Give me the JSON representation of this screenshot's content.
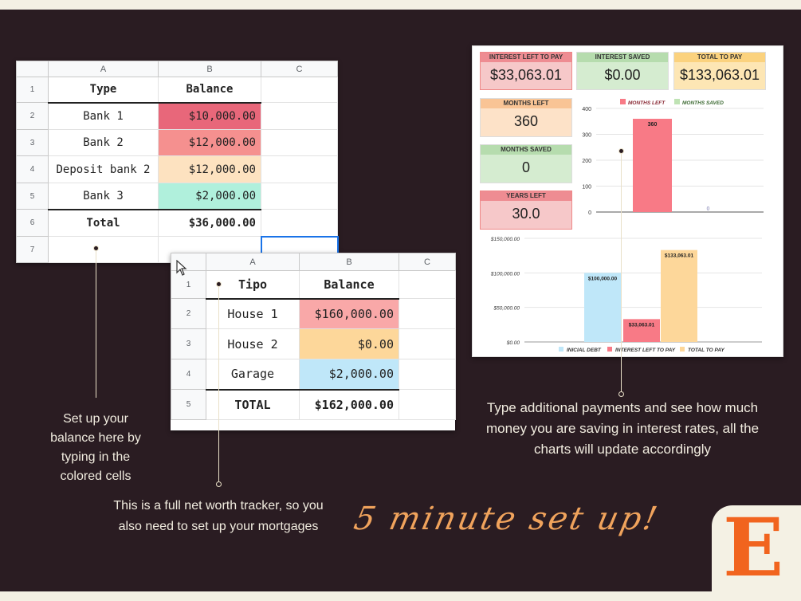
{
  "sheet1": {
    "cols": [
      "A",
      "B",
      "C"
    ],
    "rows": [
      {
        "n": "1",
        "type": "Type",
        "balance": "Balance"
      },
      {
        "n": "2",
        "type": "Bank 1",
        "balance": "$10,000.00"
      },
      {
        "n": "3",
        "type": "Bank 2",
        "balance": "$12,000.00"
      },
      {
        "n": "4",
        "type": "Deposit bank 2",
        "balance": "$12,000.00"
      },
      {
        "n": "5",
        "type": "Bank 3",
        "balance": "$2,000.00"
      },
      {
        "n": "6",
        "type": "Total",
        "balance": "$36,000.00"
      },
      {
        "n": "7",
        "type": "",
        "balance": ""
      }
    ],
    "colors": {
      "row2": "#e8677a",
      "row3": "#f5908f",
      "row4": "#fde2c0",
      "row5": "#b0f0dc"
    }
  },
  "sheet2": {
    "cols": [
      "A",
      "B",
      "C"
    ],
    "rows": [
      {
        "n": "1",
        "type": "Tipo",
        "balance": "Balance"
      },
      {
        "n": "2",
        "type": "House 1",
        "balance": "$160,000.00"
      },
      {
        "n": "3",
        "type": "House 2",
        "balance": "$0.00"
      },
      {
        "n": "4",
        "type": "Garage",
        "balance": "$2,000.00"
      },
      {
        "n": "5",
        "type": "TOTAL",
        "balance": "$162,000.00"
      }
    ],
    "colors": {
      "row2": "#f9a8a8",
      "row3": "#fdd79a",
      "row4": "#bfe7f9"
    }
  },
  "dashboard": {
    "interest_left": {
      "label": "INTEREST LEFT TO PAY",
      "value": "$33,063.01"
    },
    "interest_saved": {
      "label": "INTEREST SAVED",
      "value": "$0.00"
    },
    "total_to_pay": {
      "label": "TOTAL TO PAY",
      "value": "$133,063.01"
    },
    "months_left": {
      "label": "MONTHS LEFT",
      "value": "360"
    },
    "months_saved": {
      "label": "MONTHS SAVED",
      "value": "0"
    },
    "years_left": {
      "label": "YEARS LEFT",
      "value": "30.0"
    }
  },
  "chart_data": [
    {
      "type": "bar",
      "categories": [
        "MONTHS LEFT",
        "MONTHS SAVED"
      ],
      "values": [
        360,
        0
      ],
      "data_labels": [
        "360",
        "0"
      ],
      "legend": [
        "MONTHS LEFT",
        "MONTHS SAVED"
      ],
      "legend_position": "top",
      "yticks": [
        "400",
        "300",
        "200",
        "100",
        "0"
      ],
      "ylim": [
        0,
        400
      ],
      "colors": [
        "#f87a86",
        "#bfe3b4"
      ]
    },
    {
      "type": "bar",
      "categories": [
        "INICIAL DEBT",
        "INTEREST LEFT TO PAY",
        "TOTAL TO PAY"
      ],
      "values": [
        100000,
        33063.01,
        133063.01
      ],
      "data_labels": [
        "$100,000.00",
        "$33,063.01",
        "$133,063.01"
      ],
      "legend": [
        "INICIAL DEBT",
        "INTEREST LEFT TO PAY",
        "TOTAL TO PAY"
      ],
      "legend_position": "bottom",
      "yticks": [
        "$150,000.00",
        "$100,000.00",
        "$50,000.00",
        "$0.00"
      ],
      "ylim": [
        0,
        150000
      ],
      "colors": [
        "#bfe7f9",
        "#f87a86",
        "#fdd79a"
      ]
    }
  ],
  "captions": {
    "c1": "Set up your balance here by typing in the colored cells",
    "c2": "This is a full net worth tracker, so you also need to set up your mortgages",
    "c3": "Type additional payments and see how much money you are saving in interest rates, all the charts will update accordingly"
  },
  "slogan": "5 minute set up!",
  "logo_letter": "E"
}
